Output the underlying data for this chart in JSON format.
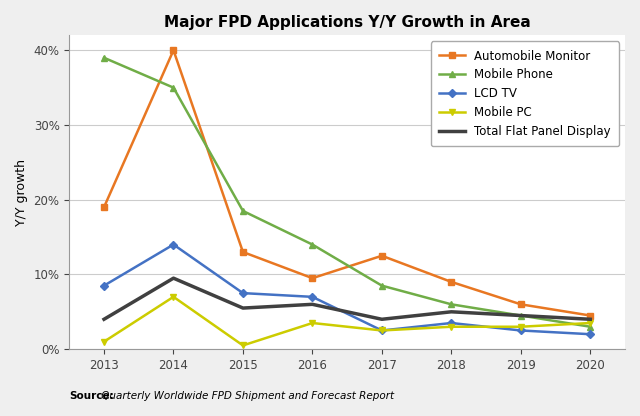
{
  "title": "Major FPD Applications Y/Y Growth in Area",
  "ylabel": "Y/Y growth",
  "source_bold": "Source:",
  "source_italic": " Quarterly Worldwide FPD Shipment and Forecast Report",
  "years": [
    2013,
    2014,
    2015,
    2016,
    2017,
    2018,
    2019,
    2020
  ],
  "series": {
    "Automobile Monitor": {
      "values": [
        19,
        40,
        13,
        9.5,
        12.5,
        9,
        6,
        4.5
      ],
      "color": "#E87722",
      "marker": "s",
      "markersize": 5,
      "linewidth": 1.8,
      "zorder": 3
    },
    "Mobile Phone": {
      "values": [
        39,
        35,
        18.5,
        14,
        8.5,
        6,
        4.5,
        3
      ],
      "color": "#70AD47",
      "marker": "^",
      "markersize": 5,
      "linewidth": 1.8,
      "zorder": 3
    },
    "LCD TV": {
      "values": [
        8.5,
        14,
        7.5,
        7,
        2.5,
        3.5,
        2.5,
        2
      ],
      "color": "#4472C4",
      "marker": "D",
      "markersize": 4,
      "linewidth": 1.8,
      "zorder": 3
    },
    "Mobile PC": {
      "values": [
        1,
        7,
        0.5,
        3.5,
        2.5,
        3,
        3,
        3.5
      ],
      "color": "#CCCC00",
      "marker": "v",
      "markersize": 5,
      "linewidth": 1.8,
      "zorder": 3
    },
    "Total Flat Panel Display": {
      "values": [
        4,
        9.5,
        5.5,
        6,
        4,
        5,
        4.5,
        4
      ],
      "color": "#404040",
      "marker": null,
      "markersize": 0,
      "linewidth": 2.5,
      "zorder": 4
    }
  },
  "ylim": [
    0,
    42
  ],
  "yticks": [
    0,
    10,
    20,
    30,
    40
  ],
  "ytick_labels": [
    "0%",
    "10%",
    "20%",
    "30%",
    "40%"
  ],
  "figure_bg": "#EFEFEF",
  "plot_bg": "#FFFFFF",
  "grid_color": "#CCCCCC",
  "legend_fontsize": 8.5,
  "title_fontsize": 11,
  "axis_label_fontsize": 9,
  "tick_fontsize": 8.5,
  "source_fontsize": 7.5
}
